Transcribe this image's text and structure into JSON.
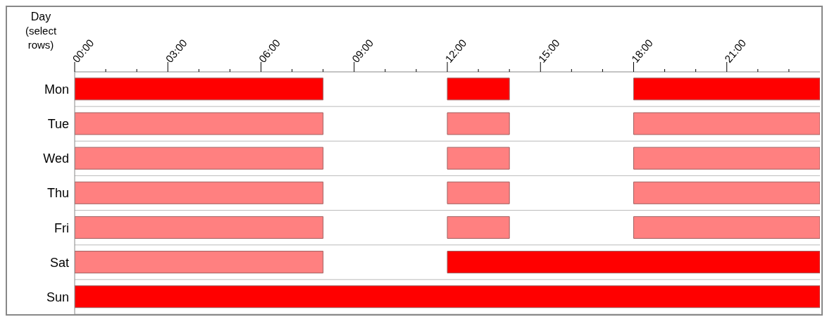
{
  "chart_data": {
    "type": "bar",
    "orientation": "horizontal",
    "ylabel": "Day (select rows)",
    "categories": [
      "Mon",
      "Tue",
      "Wed",
      "Thu",
      "Fri",
      "Sat",
      "Sun"
    ],
    "series": [
      {
        "values": [
          8,
          8,
          8,
          8,
          8,
          8,
          24
        ],
        "base": [
          0,
          0,
          0,
          0,
          0,
          0,
          0
        ],
        "colors": [
          "#ff0000",
          "#ff8080",
          "#ff8080",
          "#ff8080",
          "#ff8080",
          "#ff8080",
          "#ff0000"
        ]
      },
      {
        "values": [
          2,
          2,
          2,
          2,
          2,
          12,
          null
        ],
        "base": [
          12,
          12,
          12,
          12,
          12,
          12,
          null
        ],
        "colors": [
          "#ff0000",
          "#ff8080",
          "#ff8080",
          "#ff8080",
          "#ff8080",
          "#ff0000",
          null
        ]
      },
      {
        "values": [
          6,
          6,
          6,
          6,
          6,
          null,
          null
        ],
        "base": [
          18,
          18,
          18,
          18,
          18,
          null,
          null
        ],
        "colors": [
          "#ff0000",
          "#ff8080",
          "#ff8080",
          "#ff8080",
          "#ff8080",
          null,
          null
        ]
      }
    ],
    "xlim": [
      0,
      24
    ],
    "xticks": [
      {
        "value": 0,
        "label": "00:00"
      },
      {
        "value": 1,
        "label": null
      },
      {
        "value": 2,
        "label": null
      },
      {
        "value": 3,
        "label": "03:00"
      },
      {
        "value": 4,
        "label": null
      },
      {
        "value": 5,
        "label": null
      },
      {
        "value": 6,
        "label": "06:00"
      },
      {
        "value": 7,
        "label": null
      },
      {
        "value": 8,
        "label": null
      },
      {
        "value": 9,
        "label": "09:00"
      },
      {
        "value": 10,
        "label": null
      },
      {
        "value": 11,
        "label": null
      },
      {
        "value": 12,
        "label": "12:00"
      },
      {
        "value": 13,
        "label": null
      },
      {
        "value": 14,
        "label": null
      },
      {
        "value": 15,
        "label": "15:00"
      },
      {
        "value": 16,
        "label": null
      },
      {
        "value": 17,
        "label": null
      },
      {
        "value": 18,
        "label": "18:00"
      },
      {
        "value": 19,
        "label": null
      },
      {
        "value": 20,
        "label": null
      },
      {
        "value": 21,
        "label": "21:00"
      },
      {
        "value": 22,
        "label": null
      },
      {
        "value": 23,
        "label": null
      }
    ],
    "grid": "y",
    "legend": false
  }
}
